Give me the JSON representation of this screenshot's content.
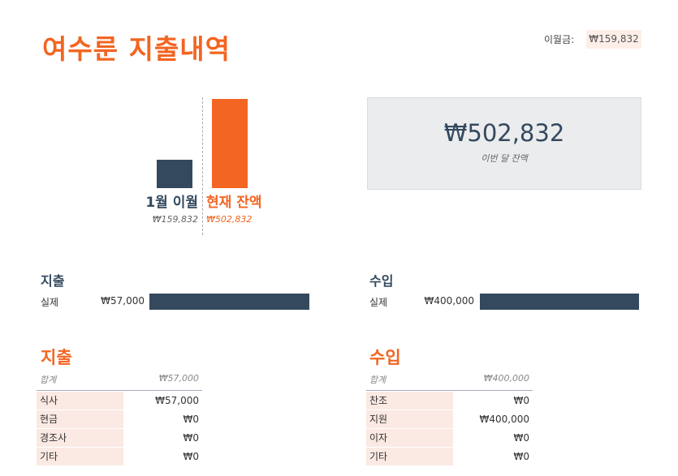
{
  "title": "여수룬 지출내역",
  "carryover": {
    "label": "이월금:",
    "value": "₩159,832"
  },
  "chart_data": {
    "type": "bar",
    "categories": [
      "1월 이월",
      "현재 잔액"
    ],
    "values": [
      159832,
      502832
    ],
    "value_labels": [
      "₩159,832",
      "₩502,832"
    ],
    "colors": [
      "#34495e",
      "#f26522"
    ]
  },
  "balance": {
    "amount": "₩502,832",
    "label": "이번 달 잔액"
  },
  "expense_summary": {
    "title": "지출",
    "actual_label": "실제",
    "actual_value": "₩57,000"
  },
  "income_summary": {
    "title": "수입",
    "actual_label": "실제",
    "actual_value": "₩400,000"
  },
  "expense_table": {
    "title": "지출",
    "total_label": "합계",
    "total_value": "₩57,000",
    "rows": [
      {
        "label": "식사",
        "value": "₩57,000"
      },
      {
        "label": "현금",
        "value": "₩0"
      },
      {
        "label": "경조사",
        "value": "₩0"
      },
      {
        "label": "기타",
        "value": "₩0"
      }
    ]
  },
  "income_table": {
    "title": "수입",
    "total_label": "합계",
    "total_value": "₩400,000",
    "rows": [
      {
        "label": "찬조",
        "value": "₩0"
      },
      {
        "label": "지원",
        "value": "₩400,000"
      },
      {
        "label": "이자",
        "value": "₩0"
      },
      {
        "label": "기타",
        "value": "₩0"
      }
    ]
  }
}
